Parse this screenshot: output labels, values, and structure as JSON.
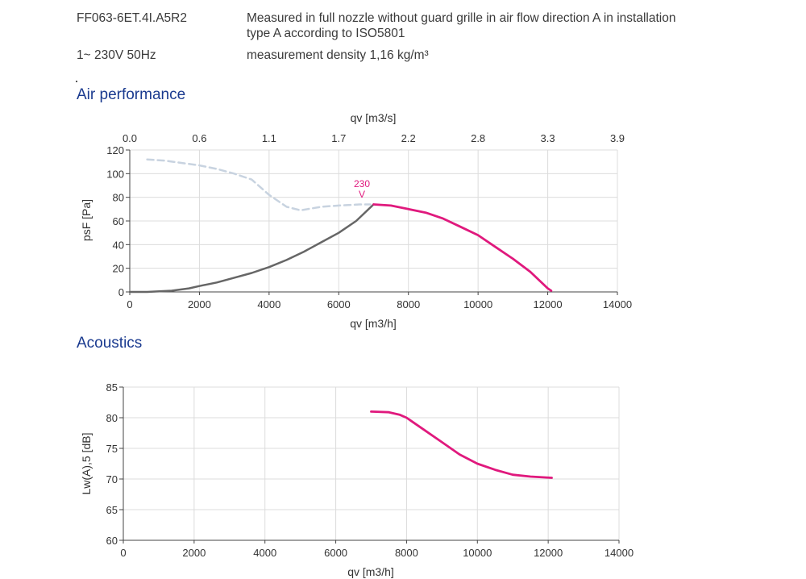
{
  "header": {
    "model": "FF063-6ET.4I.A5R2",
    "supply": "1~ 230V 50Hz",
    "measurement_line1": "Measured in full nozzle without guard grille in air flow direction A in installation",
    "measurement_line2": "type A according to ISO5801",
    "density": "measurement density 1,16 kg/m³"
  },
  "sections": {
    "air_performance": "Air performance",
    "acoustics": "Acoustics"
  },
  "colors": {
    "magenta": "#e0197d",
    "dark_gray": "#666666",
    "light_dashed": "#c8d3e0",
    "grid": "#dcdcdc",
    "title_blue": "#1a3a8f"
  },
  "chart_data": [
    {
      "type": "line",
      "title": "Air performance",
      "xlabel": "qv [m3/h]",
      "ylabel": "psF [Pa]",
      "top_axis_label": "qv [m3/s]",
      "xlim": [
        0,
        14000
      ],
      "ylim": [
        0,
        120
      ],
      "xticks": [
        "0",
        "2000",
        "4000",
        "6000",
        "8000",
        "10000",
        "12000",
        "14000"
      ],
      "yticks": [
        "0",
        "20",
        "40",
        "60",
        "80",
        "100",
        "120"
      ],
      "top_ticks": [
        "0.0",
        "0.6",
        "1.1",
        "1.7",
        "2.2",
        "2.8",
        "3.3",
        "3.9"
      ],
      "grid": true,
      "annotations": [
        {
          "text_line1": "230",
          "text_line2": "V",
          "x": 6900,
          "y": 87
        }
      ],
      "series": [
        {
          "style": "dashed-light",
          "points": [
            [
              500,
              112
            ],
            [
              1000,
              111
            ],
            [
              1500,
              109
            ],
            [
              2000,
              107
            ],
            [
              2500,
              104
            ],
            [
              3000,
              100
            ],
            [
              3500,
              95
            ],
            [
              4000,
              82
            ],
            [
              4500,
              72
            ],
            [
              4900,
              69
            ],
            [
              5500,
              72
            ],
            [
              6000,
              73
            ],
            [
              6600,
              74
            ],
            [
              6900,
              74
            ]
          ]
        },
        {
          "style": "solid-gray",
          "points": [
            [
              0,
              0
            ],
            [
              500,
              0
            ],
            [
              1200,
              1
            ],
            [
              1700,
              3
            ],
            [
              2000,
              5
            ],
            [
              2500,
              8
            ],
            [
              3000,
              12
            ],
            [
              3500,
              16
            ],
            [
              4000,
              21
            ],
            [
              4500,
              27
            ],
            [
              5000,
              34
            ],
            [
              5500,
              42
            ],
            [
              6000,
              50
            ],
            [
              6500,
              60
            ],
            [
              7000,
              74
            ]
          ]
        },
        {
          "style": "solid-magenta",
          "points": [
            [
              7000,
              74
            ],
            [
              7500,
              73
            ],
            [
              8000,
              70
            ],
            [
              8500,
              67
            ],
            [
              9000,
              62
            ],
            [
              9500,
              55
            ],
            [
              10000,
              48
            ],
            [
              10500,
              38
            ],
            [
              11000,
              28
            ],
            [
              11500,
              17
            ],
            [
              12000,
              3
            ],
            [
              12100,
              1
            ]
          ]
        }
      ]
    },
    {
      "type": "line",
      "title": "Acoustics",
      "xlabel": "qv [m3/h]",
      "ylabel": "Lw(A),5 [dB]",
      "xlim": [
        0,
        14000
      ],
      "ylim": [
        60,
        85
      ],
      "xticks": [
        "0",
        "2000",
        "4000",
        "6000",
        "8000",
        "10000",
        "12000",
        "14000"
      ],
      "yticks": [
        "60",
        "65",
        "70",
        "75",
        "80",
        "85"
      ],
      "grid": true,
      "series": [
        {
          "style": "solid-magenta",
          "points": [
            [
              7000,
              81
            ],
            [
              7500,
              80.9
            ],
            [
              7800,
              80.5
            ],
            [
              8000,
              80
            ],
            [
              8500,
              78
            ],
            [
              9000,
              76
            ],
            [
              9500,
              74
            ],
            [
              10000,
              72.5
            ],
            [
              10500,
              71.5
            ],
            [
              11000,
              70.7
            ],
            [
              11500,
              70.4
            ],
            [
              12100,
              70.2
            ]
          ]
        }
      ]
    }
  ]
}
